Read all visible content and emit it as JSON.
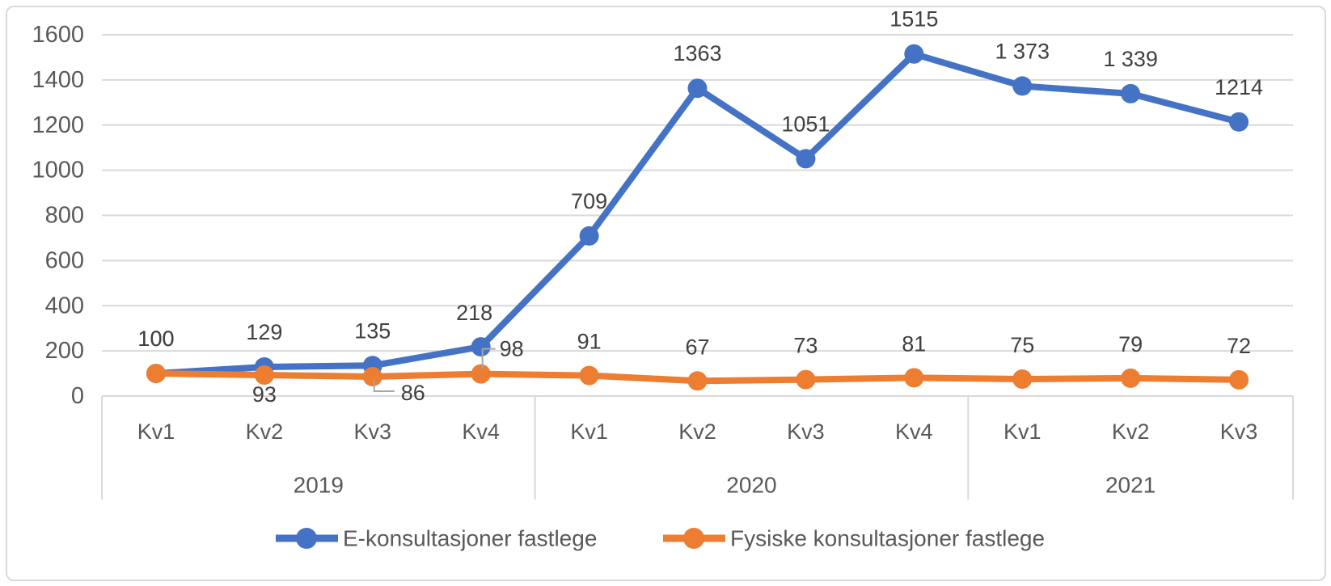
{
  "chart_data": {
    "type": "line",
    "title": "",
    "categories": [
      "Kv1",
      "Kv2",
      "Kv3",
      "Kv4",
      "Kv1",
      "Kv2",
      "Kv3",
      "Kv4",
      "Kv1",
      "Kv2",
      "Kv3"
    ],
    "year_groups": [
      {
        "label": "2019",
        "span": 4
      },
      {
        "label": "2020",
        "span": 4
      },
      {
        "label": "2021",
        "span": 3
      }
    ],
    "ylim": [
      0,
      1600
    ],
    "y_ticks": [
      "0",
      "200",
      "400",
      "600",
      "800",
      "1000",
      "1200",
      "1400",
      "1600"
    ],
    "grid": "horizontal",
    "legend_position": "bottom",
    "series": [
      {
        "name": "E-konsultasjoner fastlege",
        "color": "#4472C4",
        "values": [
          100,
          129,
          135,
          218,
          709,
          1363,
          1051,
          1515,
          1373,
          1339,
          1214
        ],
        "labels": [
          "100",
          "129",
          "135",
          "218",
          "709",
          "1363",
          "1051",
          "1515",
          "1 373",
          "1 339",
          "1214"
        ],
        "label_offsets": [
          [
            0,
            -43
          ],
          [
            0,
            -43
          ],
          [
            0,
            -43
          ],
          [
            -8,
            -42
          ],
          [
            0,
            -43
          ],
          [
            0,
            -43
          ],
          [
            0,
            -43
          ],
          [
            0,
            -43
          ],
          [
            0,
            -43
          ],
          [
            0,
            -43
          ],
          [
            0,
            -43
          ]
        ],
        "leaders": {}
      },
      {
        "name": "Fysiske konsultasjoner fastlege",
        "color": "#ED7D31",
        "values": [
          100,
          93,
          86,
          98,
          91,
          67,
          73,
          81,
          75,
          79,
          72
        ],
        "labels": [
          "100",
          "93",
          "86",
          "98",
          "91",
          "67",
          "73",
          "81",
          "75",
          "79",
          "72"
        ],
        "label_offsets": [
          [
            0,
            -43
          ],
          [
            0,
            24
          ],
          [
            50,
            20
          ],
          [
            38,
            -31
          ],
          [
            0,
            -42
          ],
          [
            0,
            -42
          ],
          [
            0,
            -42
          ],
          [
            0,
            -42
          ],
          [
            0,
            -42
          ],
          [
            0,
            -42
          ],
          [
            0,
            -42
          ]
        ],
        "leaders": {
          "2": [
            [
              2,
              5
            ],
            [
              2,
              18
            ],
            [
              27,
              18
            ]
          ],
          "3": [
            [
              2,
              -6
            ],
            [
              2,
              -31
            ],
            [
              18,
              -31
            ]
          ]
        }
      }
    ],
    "colors": {
      "grid": "#D9D9D9",
      "axis_text": "#595959",
      "label_text": "#404040",
      "leader": "#A6A6A6",
      "frame_border": "#D9D9D9",
      "background": "#FFFFFF"
    }
  }
}
